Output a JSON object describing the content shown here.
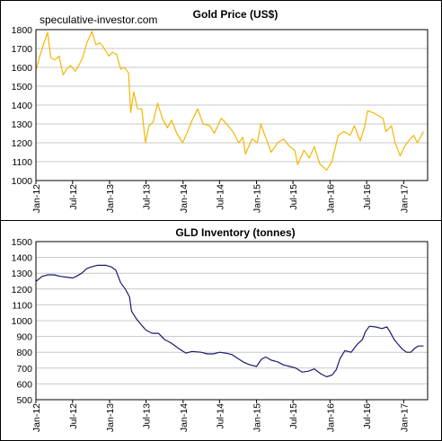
{
  "watermark": "speculative-investor.com",
  "colors": {
    "gold_line": "#F2B705",
    "gld_line": "#1A1A6E",
    "grid": "#C8C8C8",
    "frame": "#000000",
    "background": "#FFFFFF"
  },
  "chart_data": [
    {
      "type": "line",
      "title": "Gold  Price (US$)",
      "xlabel": "",
      "ylabel": "",
      "ylim": [
        1000,
        1800
      ],
      "yticks": [
        1000,
        1100,
        1200,
        1300,
        1400,
        1500,
        1600,
        1700,
        1800
      ],
      "xlim": [
        "2012-01-01",
        "2017-04-30"
      ],
      "xticks": [
        {
          "date": "2012-01-01",
          "label": "Jan-12"
        },
        {
          "date": "2012-07-01",
          "label": "Jul-12"
        },
        {
          "date": "2013-01-01",
          "label": "Jan-13"
        },
        {
          "date": "2013-07-01",
          "label": "Jul-13"
        },
        {
          "date": "2014-01-01",
          "label": "Jan-14"
        },
        {
          "date": "2014-07-01",
          "label": "Jul-14"
        },
        {
          "date": "2015-01-01",
          "label": "Jan-15"
        },
        {
          "date": "2015-07-01",
          "label": "Jul-15"
        },
        {
          "date": "2016-01-01",
          "label": "Jan-16"
        },
        {
          "date": "2016-07-01",
          "label": "Jul-16"
        },
        {
          "date": "2017-01-01",
          "label": "Jan-17"
        }
      ],
      "grid": true,
      "series": [
        {
          "color": "#F2B705",
          "points": [
            [
              "2012-01-03",
              1590
            ],
            [
              "2012-01-20",
              1660
            ],
            [
              "2012-02-10",
              1730
            ],
            [
              "2012-02-28",
              1785
            ],
            [
              "2012-03-15",
              1650
            ],
            [
              "2012-04-05",
              1640
            ],
            [
              "2012-04-25",
              1660
            ],
            [
              "2012-05-15",
              1560
            ],
            [
              "2012-06-01",
              1590
            ],
            [
              "2012-06-20",
              1610
            ],
            [
              "2012-07-15",
              1580
            ],
            [
              "2012-08-01",
              1610
            ],
            [
              "2012-08-20",
              1650
            ],
            [
              "2012-09-10",
              1730
            ],
            [
              "2012-10-05",
              1790
            ],
            [
              "2012-10-25",
              1720
            ],
            [
              "2012-11-15",
              1730
            ],
            [
              "2012-12-05",
              1700
            ],
            [
              "2012-12-28",
              1660
            ],
            [
              "2013-01-15",
              1680
            ],
            [
              "2013-02-05",
              1670
            ],
            [
              "2013-02-25",
              1590
            ],
            [
              "2013-03-15",
              1600
            ],
            [
              "2013-04-05",
              1570
            ],
            [
              "2013-04-16",
              1360
            ],
            [
              "2013-05-01",
              1470
            ],
            [
              "2013-05-20",
              1380
            ],
            [
              "2013-06-10",
              1380
            ],
            [
              "2013-06-28",
              1200
            ],
            [
              "2013-07-15",
              1290
            ],
            [
              "2013-08-05",
              1310
            ],
            [
              "2013-08-28",
              1410
            ],
            [
              "2013-09-20",
              1330
            ],
            [
              "2013-10-15",
              1280
            ],
            [
              "2013-11-05",
              1320
            ],
            [
              "2013-12-01",
              1250
            ],
            [
              "2013-12-30",
              1200
            ],
            [
              "2014-01-20",
              1250
            ],
            [
              "2014-02-15",
              1320
            ],
            [
              "2014-03-15",
              1380
            ],
            [
              "2014-04-10",
              1300
            ],
            [
              "2014-05-15",
              1290
            ],
            [
              "2014-06-05",
              1250
            ],
            [
              "2014-07-10",
              1330
            ],
            [
              "2014-08-05",
              1300
            ],
            [
              "2014-09-05",
              1260
            ],
            [
              "2014-10-05",
              1200
            ],
            [
              "2014-10-25",
              1230
            ],
            [
              "2014-11-07",
              1140
            ],
            [
              "2014-12-10",
              1220
            ],
            [
              "2015-01-05",
              1200
            ],
            [
              "2015-01-22",
              1300
            ],
            [
              "2015-02-15",
              1230
            ],
            [
              "2015-03-15",
              1150
            ],
            [
              "2015-04-15",
              1200
            ],
            [
              "2015-05-15",
              1220
            ],
            [
              "2015-06-15",
              1180
            ],
            [
              "2015-07-10",
              1160
            ],
            [
              "2015-07-24",
              1085
            ],
            [
              "2015-08-25",
              1160
            ],
            [
              "2015-09-20",
              1120
            ],
            [
              "2015-10-15",
              1180
            ],
            [
              "2015-11-10",
              1090
            ],
            [
              "2015-12-15",
              1055
            ],
            [
              "2016-01-10",
              1100
            ],
            [
              "2016-02-11",
              1240
            ],
            [
              "2016-03-10",
              1260
            ],
            [
              "2016-04-10",
              1240
            ],
            [
              "2016-05-01",
              1290
            ],
            [
              "2016-05-30",
              1210
            ],
            [
              "2016-06-20",
              1280
            ],
            [
              "2016-07-06",
              1370
            ],
            [
              "2016-08-01",
              1360
            ],
            [
              "2016-09-05",
              1340
            ],
            [
              "2016-09-20",
              1330
            ],
            [
              "2016-10-05",
              1260
            ],
            [
              "2016-11-01",
              1290
            ],
            [
              "2016-11-20",
              1200
            ],
            [
              "2016-12-15",
              1130
            ],
            [
              "2017-01-05",
              1180
            ],
            [
              "2017-01-25",
              1210
            ],
            [
              "2017-02-20",
              1240
            ],
            [
              "2017-03-10",
              1200
            ],
            [
              "2017-04-10",
              1260
            ]
          ]
        }
      ]
    },
    {
      "type": "line",
      "title": "GLD  Inventory (tonnes)",
      "xlabel": "",
      "ylabel": "",
      "ylim": [
        500,
        1500
      ],
      "yticks": [
        500,
        600,
        700,
        800,
        900,
        1000,
        1100,
        1200,
        1300,
        1400,
        1500
      ],
      "xlim": [
        "2012-01-01",
        "2017-04-30"
      ],
      "xticks": [
        {
          "date": "2012-01-01",
          "label": "Jan-12"
        },
        {
          "date": "2012-07-01",
          "label": "Jul-12"
        },
        {
          "date": "2013-01-01",
          "label": "Jan-13"
        },
        {
          "date": "2013-07-01",
          "label": "Jul-13"
        },
        {
          "date": "2014-01-01",
          "label": "Jan-14"
        },
        {
          "date": "2014-07-01",
          "label": "Jul-14"
        },
        {
          "date": "2015-01-01",
          "label": "Jan-15"
        },
        {
          "date": "2015-07-01",
          "label": "Jul-15"
        },
        {
          "date": "2016-01-01",
          "label": "Jan-16"
        },
        {
          "date": "2016-07-01",
          "label": "Jul-16"
        },
        {
          "date": "2017-01-01",
          "label": "Jan-17"
        }
      ],
      "grid": true,
      "series": [
        {
          "color": "#1A1A6E",
          "points": [
            [
              "2012-01-03",
              1250
            ],
            [
              "2012-02-01",
              1280
            ],
            [
              "2012-03-01",
              1290
            ],
            [
              "2012-04-01",
              1290
            ],
            [
              "2012-05-01",
              1280
            ],
            [
              "2012-06-01",
              1275
            ],
            [
              "2012-07-01",
              1270
            ],
            [
              "2012-07-20",
              1280
            ],
            [
              "2012-08-15",
              1300
            ],
            [
              "2012-09-10",
              1330
            ],
            [
              "2012-10-01",
              1340
            ],
            [
              "2012-11-01",
              1350
            ],
            [
              "2012-12-15",
              1350
            ],
            [
              "2013-01-10",
              1340
            ],
            [
              "2013-02-01",
              1320
            ],
            [
              "2013-02-25",
              1240
            ],
            [
              "2013-03-20",
              1200
            ],
            [
              "2013-04-10",
              1150
            ],
            [
              "2013-04-20",
              1060
            ],
            [
              "2013-05-15",
              1010
            ],
            [
              "2013-06-10",
              970
            ],
            [
              "2013-07-01",
              940
            ],
            [
              "2013-08-01",
              920
            ],
            [
              "2013-09-01",
              920
            ],
            [
              "2013-10-01",
              880
            ],
            [
              "2013-11-01",
              860
            ],
            [
              "2013-12-15",
              820
            ],
            [
              "2014-01-15",
              795
            ],
            [
              "2014-02-15",
              805
            ],
            [
              "2014-04-01",
              800
            ],
            [
              "2014-05-01",
              790
            ],
            [
              "2014-06-01",
              790
            ],
            [
              "2014-07-01",
              800
            ],
            [
              "2014-08-01",
              795
            ],
            [
              "2014-09-01",
              785
            ],
            [
              "2014-10-01",
              760
            ],
            [
              "2014-11-01",
              735
            ],
            [
              "2014-12-01",
              720
            ],
            [
              "2015-01-01",
              710
            ],
            [
              "2015-01-25",
              755
            ],
            [
              "2015-02-15",
              770
            ],
            [
              "2015-03-15",
              750
            ],
            [
              "2015-04-15",
              740
            ],
            [
              "2015-05-15",
              720
            ],
            [
              "2015-06-15",
              710
            ],
            [
              "2015-07-15",
              700
            ],
            [
              "2015-08-15",
              675
            ],
            [
              "2015-09-15",
              680
            ],
            [
              "2015-10-15",
              695
            ],
            [
              "2015-11-15",
              665
            ],
            [
              "2015-12-15",
              645
            ],
            [
              "2016-01-10",
              655
            ],
            [
              "2016-02-01",
              690
            ],
            [
              "2016-02-20",
              760
            ],
            [
              "2016-03-15",
              810
            ],
            [
              "2016-04-15",
              800
            ],
            [
              "2016-05-15",
              850
            ],
            [
              "2016-06-10",
              880
            ],
            [
              "2016-06-25",
              930
            ],
            [
              "2016-07-15",
              965
            ],
            [
              "2016-08-15",
              960
            ],
            [
              "2016-09-15",
              950
            ],
            [
              "2016-10-10",
              960
            ],
            [
              "2016-10-25",
              930
            ],
            [
              "2016-11-15",
              880
            ],
            [
              "2016-12-01",
              855
            ],
            [
              "2016-12-25",
              820
            ],
            [
              "2017-01-15",
              800
            ],
            [
              "2017-02-05",
              800
            ],
            [
              "2017-02-25",
              825
            ],
            [
              "2017-03-15",
              840
            ],
            [
              "2017-04-10",
              840
            ]
          ]
        }
      ]
    }
  ]
}
